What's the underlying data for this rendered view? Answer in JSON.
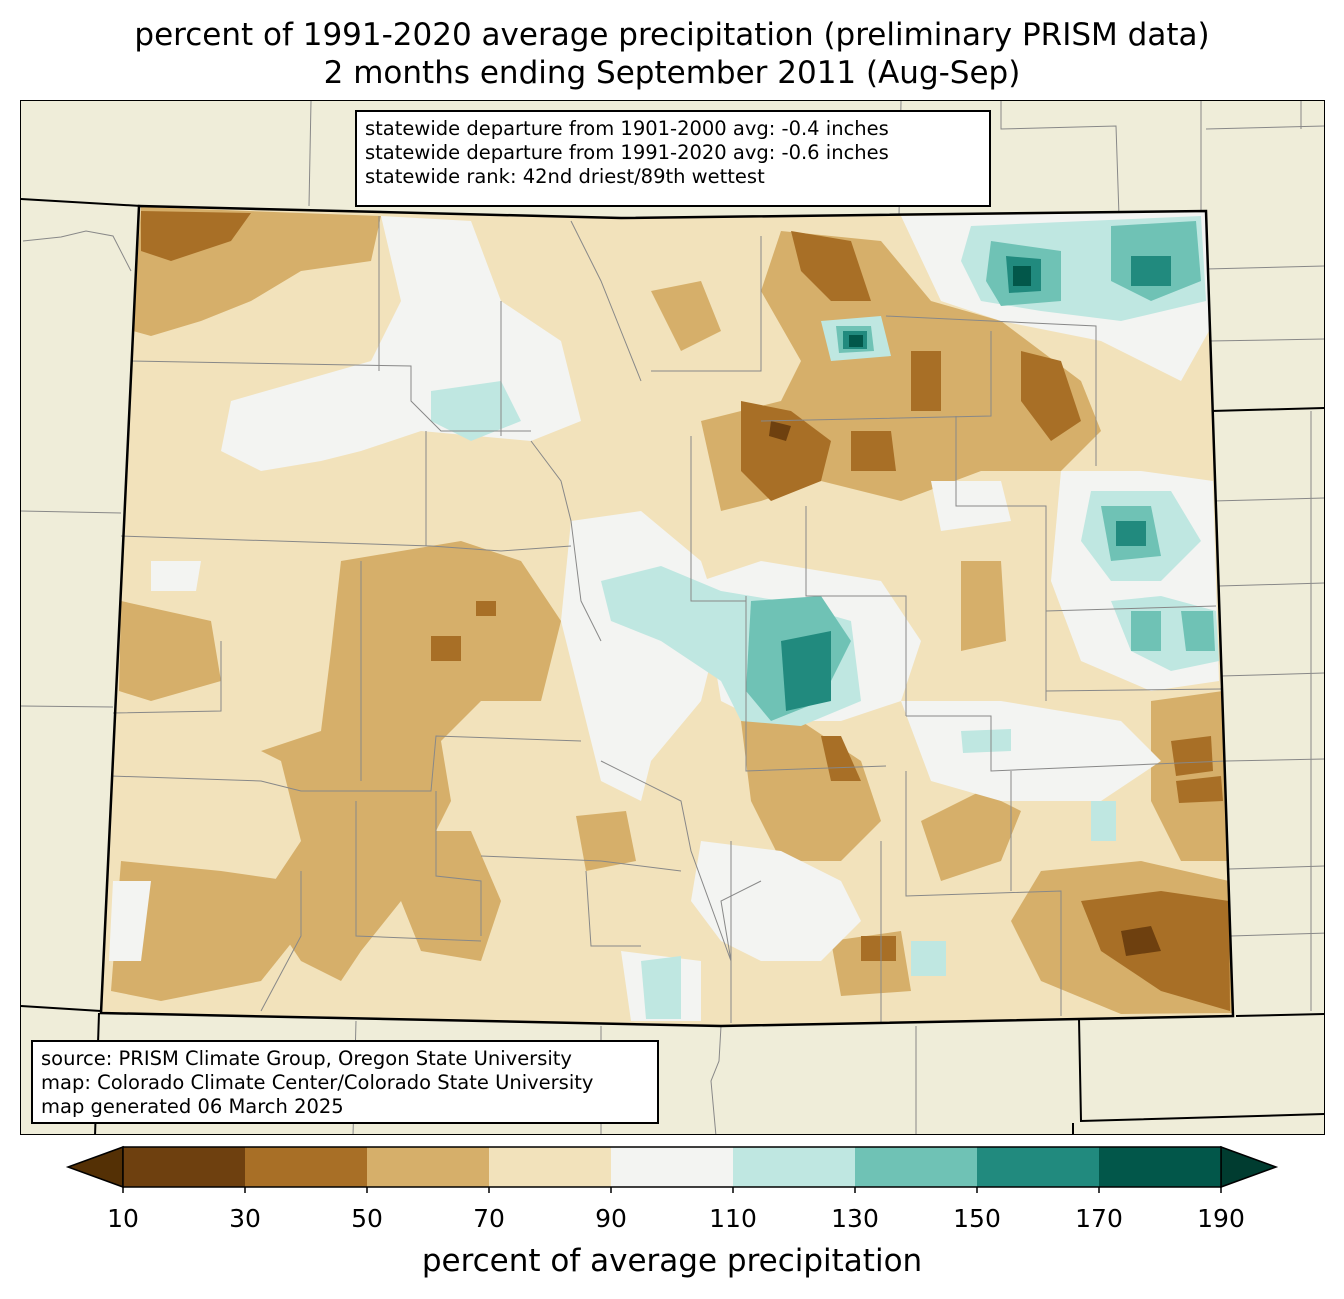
{
  "title": {
    "line1": "percent of 1991-2020 average precipitation (preliminary PRISM data)",
    "line2": "2 months ending September 2011 (Aug-Sep)"
  },
  "stats": {
    "line1": "statewide departure from 1901-2000 avg: -0.4 inches",
    "line2": "statewide departure from 1991-2020 avg: -0.6 inches",
    "line3": "statewide rank: 42nd driest/89th wettest"
  },
  "source": {
    "line1": "source: PRISM Climate Group, Oregon State University",
    "line2": "map: Colorado Climate Center/Colorado State University",
    "line3": "map generated 06 March 2025"
  },
  "colorbar": {
    "label": "percent of average precipitation",
    "ticks": [
      "10",
      "30",
      "50",
      "70",
      "90",
      "110",
      "130",
      "150",
      "170",
      "190"
    ],
    "colors": [
      "#6e400f",
      "#a86f26",
      "#d6af6a",
      "#f2e2bb",
      "#f3f4f2",
      "#bfe7e1",
      "#6fc2b5",
      "#218a7e",
      "#02574a"
    ],
    "under_color": "#543005",
    "over_color": "#003c30"
  },
  "map": {
    "land_color": "#efedd9",
    "state_fill": "#f2e2bb"
  }
}
